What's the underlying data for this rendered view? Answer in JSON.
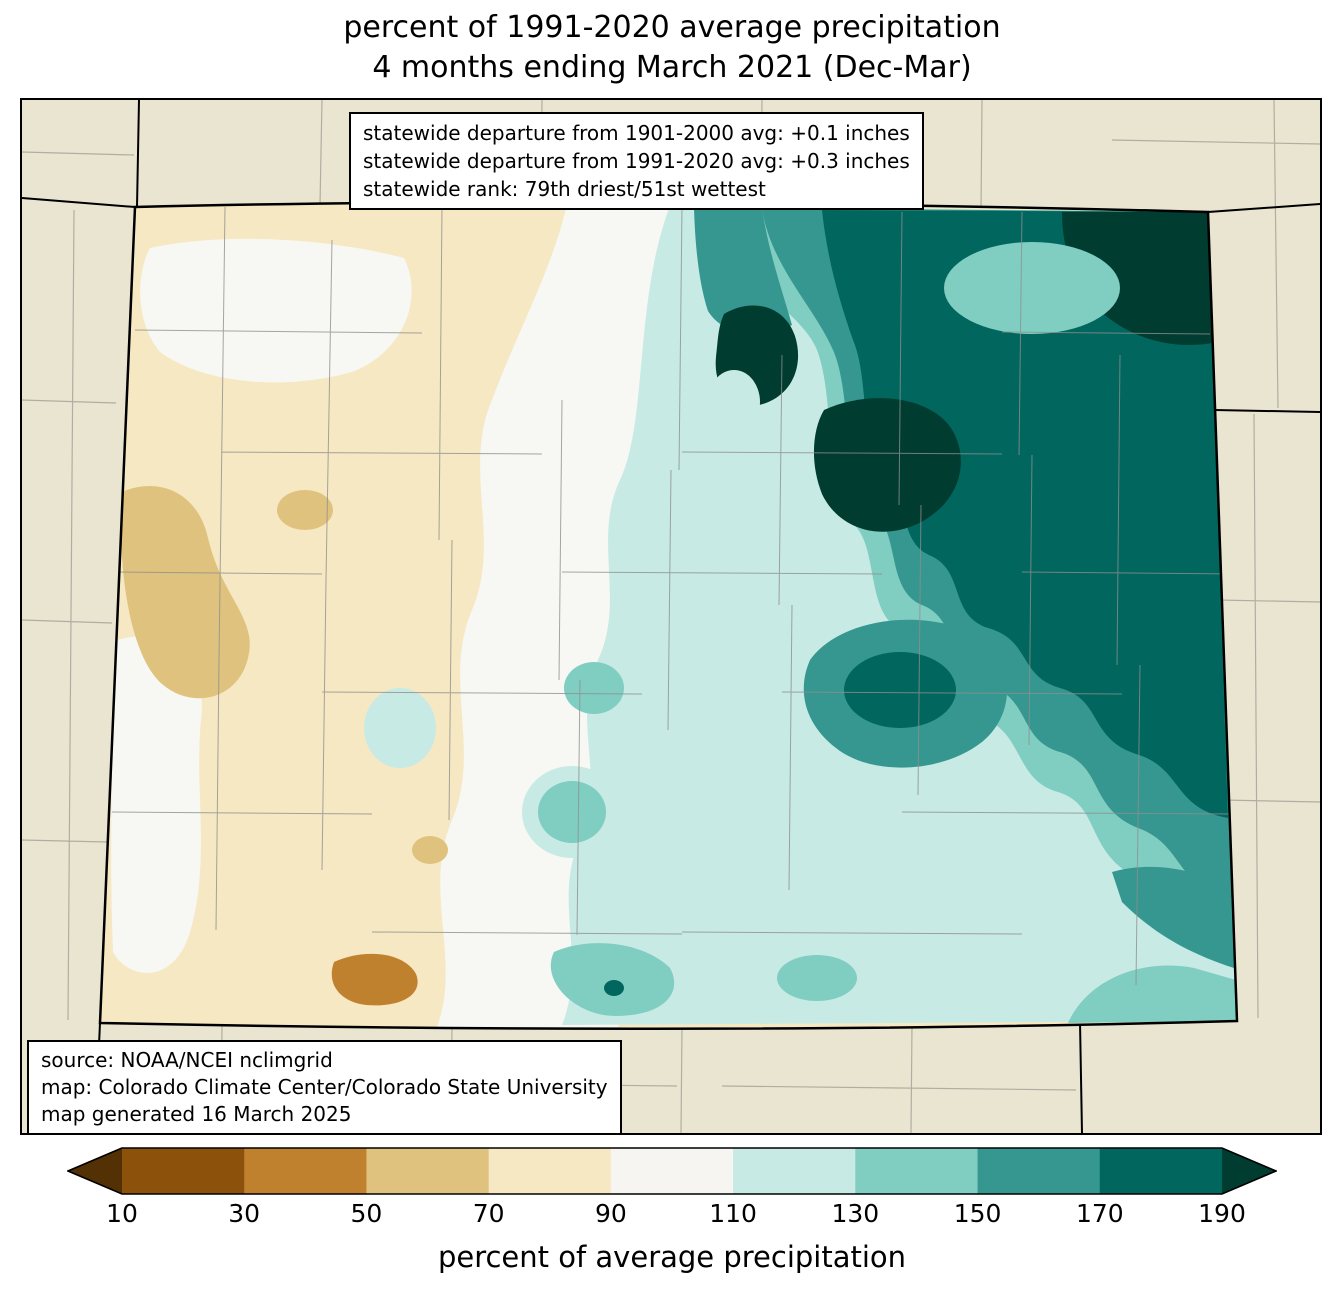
{
  "title": {
    "line1": "percent of 1991-2020 average precipitation",
    "line2": "4 months ending March 2021 (Dec-Mar)"
  },
  "stats_box": {
    "line1": "statewide departure from 1901-2000 avg: +0.1 inches",
    "line2": "statewide departure from 1991-2020 avg: +0.3 inches",
    "line3": "statewide rank: 79th driest/51st wettest"
  },
  "source_box": {
    "line1": "source: NOAA/NCEI nclimgrid",
    "line2": "map: Colorado Climate Center/Colorado State University",
    "line3": "map generated 16 March 2025"
  },
  "colorbar": {
    "label": "percent of average precipitation",
    "ticks": [
      "10",
      "30",
      "50",
      "70",
      "90",
      "110",
      "130",
      "150",
      "170",
      "190"
    ],
    "segment_colors": [
      "#8c510a",
      "#bf812d",
      "#dfc27d",
      "#f6e8c3",
      "#f6f5f1",
      "#c7eae5",
      "#80cdc1",
      "#35978f",
      "#01665e"
    ],
    "under_color": "#543005",
    "over_color": "#003c30"
  },
  "palette": {
    "map_background": "#e9e5d1",
    "band_dark_brown": "#8c510a",
    "band_brown": "#bf812d",
    "band_tan": "#dfc27d",
    "band_light_tan": "#f6e8c3",
    "band_white": "#f7f7f3",
    "band_light_teal": "#c7eae5",
    "band_teal": "#80cdc1",
    "band_dark_teal": "#35978f",
    "band_darker_teal": "#01665e",
    "band_darkest_teal": "#003c30"
  }
}
